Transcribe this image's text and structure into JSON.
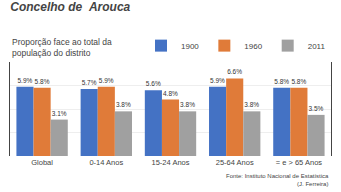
{
  "chart_data": {
    "type": "bar",
    "title": "Concelho de  Arouca",
    "subtitle": "Proporção face ao total da\npopulação do distrito",
    "categories": [
      "Global",
      "0-14 Anos",
      "15-24 Anos",
      "25-64 Anos",
      "= e > 65 Anos"
    ],
    "series": [
      {
        "name": "1900",
        "color": "#4472c4",
        "values": [
          5.9,
          5.7,
          5.6,
          5.9,
          5.8
        ],
        "value_labels": [
          "5.9%",
          "5.7%",
          "5.6%",
          "5.9%",
          "5.8%"
        ]
      },
      {
        "name": "1960",
        "color": "#e07b39",
        "values": [
          5.8,
          5.9,
          4.8,
          6.6,
          5.8
        ],
        "value_labels": [
          "5.8%",
          "5.9%",
          "4.8%",
          "6.6%",
          "5.8%"
        ]
      },
      {
        "name": "2011",
        "color": "#a0a0a0",
        "values": [
          3.1,
          3.8,
          3.8,
          3.8,
          3.5
        ],
        "value_labels": [
          "3.1%",
          "3.8%",
          "3.8%",
          "3.8%",
          "3.5%"
        ]
      }
    ],
    "ylim": [
      0,
      8.0
    ],
    "yticks": [
      2,
      4,
      6
    ],
    "grid": true,
    "tick_labels": "x",
    "data_labels": true,
    "legend": "upper right",
    "annotations": [
      "Fonte: Instituto Nacional de Estatística\n(J. Ferreira)"
    ]
  }
}
